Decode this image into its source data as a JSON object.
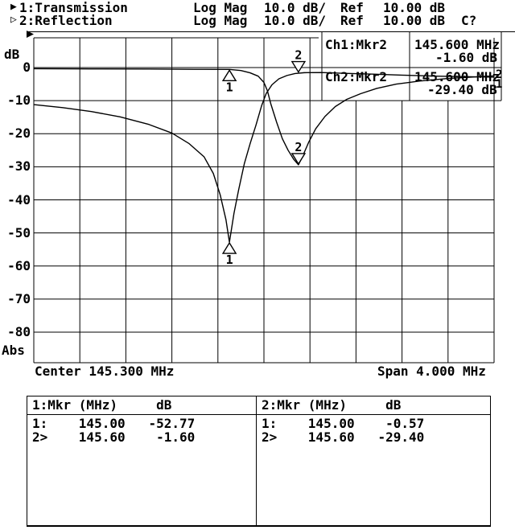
{
  "header": {
    "ch1": {
      "marker_glyph": "▶",
      "label": "1:Transmission",
      "format": "Log Mag",
      "scale": "10.0 dB/",
      "ref_label": "Ref",
      "ref_value": "10.00 dB"
    },
    "ch2": {
      "marker_glyph": "▷",
      "label": "2:Reflection",
      "format": "Log Mag",
      "scale": "10.0 dB/",
      "ref_label": "Ref",
      "ref_value": "10.00 dB",
      "cal_status": "C?"
    }
  },
  "axis": {
    "unit_top": "dB",
    "unit_bottom": "Abs",
    "center_label": "Center 145.300 MHz",
    "span_label": "Span 4.000 MHz"
  },
  "readout": {
    "ch1_title": "Ch1:Mkr2",
    "ch1_freq": "145.600 MHz",
    "ch1_value": "-1.60 dB",
    "ch2_title": "Ch2:Mkr2",
    "ch2_freq": "145.600 MHz",
    "ch2_value": "-29.40 dB"
  },
  "trace_end_labels": {
    "trace2": "2",
    "trace1": "1"
  },
  "marker_table": {
    "left": {
      "header": "1:Mkr (MHz)     dB",
      "rows": [
        "1:    145.00   -52.77",
        "2>    145.60    -1.60"
      ]
    },
    "right": {
      "header": "2:Mkr (MHz)     dB",
      "rows": [
        "1:    145.00    -0.57",
        "2>    145.60   -29.40"
      ]
    }
  },
  "colors": {
    "fg": "#000000",
    "bg": "#ffffff"
  },
  "chart_data": {
    "type": "line",
    "title": "",
    "xlabel": "MHz",
    "ylabel": "dB",
    "x_axis": {
      "center_mhz": 145.3,
      "span_mhz": 4.0,
      "min_mhz": 143.3,
      "max_mhz": 147.3,
      "divisions": 10
    },
    "y_axis": {
      "ref_db": 10.0,
      "db_per_div": 10.0,
      "tick_labels": [
        "0",
        "-10",
        "-20",
        "-30",
        "-40",
        "-50",
        "-60",
        "-70",
        "-80"
      ],
      "ticks": [
        0,
        -10,
        -20,
        -30,
        -40,
        -50,
        -60,
        -70,
        -80
      ]
    },
    "grid": true,
    "series": [
      {
        "name": "1: Transmission",
        "points": [
          [
            143.3,
            -11.2
          ],
          [
            143.55,
            -12.1
          ],
          [
            143.8,
            -13.3
          ],
          [
            144.05,
            -14.9
          ],
          [
            144.3,
            -17.2
          ],
          [
            144.5,
            -19.8
          ],
          [
            144.65,
            -23.0
          ],
          [
            144.78,
            -27.0
          ],
          [
            144.86,
            -32.0
          ],
          [
            144.92,
            -38.5
          ],
          [
            144.97,
            -46.0
          ],
          [
            145.0,
            -52.8
          ],
          [
            145.04,
            -44.0
          ],
          [
            145.08,
            -37.0
          ],
          [
            145.13,
            -29.0
          ],
          [
            145.18,
            -23.0
          ],
          [
            145.23,
            -17.5
          ],
          [
            145.28,
            -11.5
          ],
          [
            145.32,
            -7.8
          ],
          [
            145.37,
            -5.2
          ],
          [
            145.43,
            -3.4
          ],
          [
            145.5,
            -2.4
          ],
          [
            145.57,
            -1.8
          ],
          [
            145.65,
            -1.55
          ],
          [
            145.8,
            -1.5
          ],
          [
            146.0,
            -1.75
          ],
          [
            146.25,
            -2.0
          ],
          [
            146.5,
            -2.3
          ],
          [
            146.8,
            -2.6
          ],
          [
            147.05,
            -2.75
          ],
          [
            147.3,
            -2.9
          ]
        ]
      },
      {
        "name": "2: Reflection",
        "points": [
          [
            143.3,
            -0.35
          ],
          [
            143.8,
            -0.4
          ],
          [
            144.3,
            -0.45
          ],
          [
            144.7,
            -0.52
          ],
          [
            145.0,
            -0.57
          ],
          [
            145.1,
            -0.9
          ],
          [
            145.18,
            -1.6
          ],
          [
            145.25,
            -2.6
          ],
          [
            145.3,
            -4.5
          ],
          [
            145.33,
            -7.0
          ],
          [
            145.36,
            -11.0
          ],
          [
            145.41,
            -16.5
          ],
          [
            145.46,
            -21.5
          ],
          [
            145.51,
            -25.0
          ],
          [
            145.56,
            -27.8
          ],
          [
            145.6,
            -29.4
          ],
          [
            145.64,
            -26.5
          ],
          [
            145.69,
            -22.5
          ],
          [
            145.75,
            -18.5
          ],
          [
            145.83,
            -14.8
          ],
          [
            145.92,
            -11.8
          ],
          [
            146.02,
            -9.6
          ],
          [
            146.14,
            -7.9
          ],
          [
            146.28,
            -6.3
          ],
          [
            146.45,
            -5.0
          ],
          [
            146.65,
            -4.1
          ],
          [
            146.9,
            -3.3
          ],
          [
            147.1,
            -2.9
          ],
          [
            147.3,
            -2.5
          ]
        ]
      }
    ],
    "markers": [
      {
        "channel": 1,
        "marker": 1,
        "freq_mhz": 145.0,
        "db": -52.77,
        "label": "1",
        "label_pos": "below"
      },
      {
        "channel": 1,
        "marker": 2,
        "freq_mhz": 145.6,
        "db": -1.6,
        "label": "2",
        "label_pos": "above"
      },
      {
        "channel": 2,
        "marker": 1,
        "freq_mhz": 145.0,
        "db": -0.57,
        "label": "1",
        "label_pos": "below"
      },
      {
        "channel": 2,
        "marker": 2,
        "freq_mhz": 145.6,
        "db": -29.4,
        "label": "2",
        "label_pos": "above"
      }
    ]
  }
}
